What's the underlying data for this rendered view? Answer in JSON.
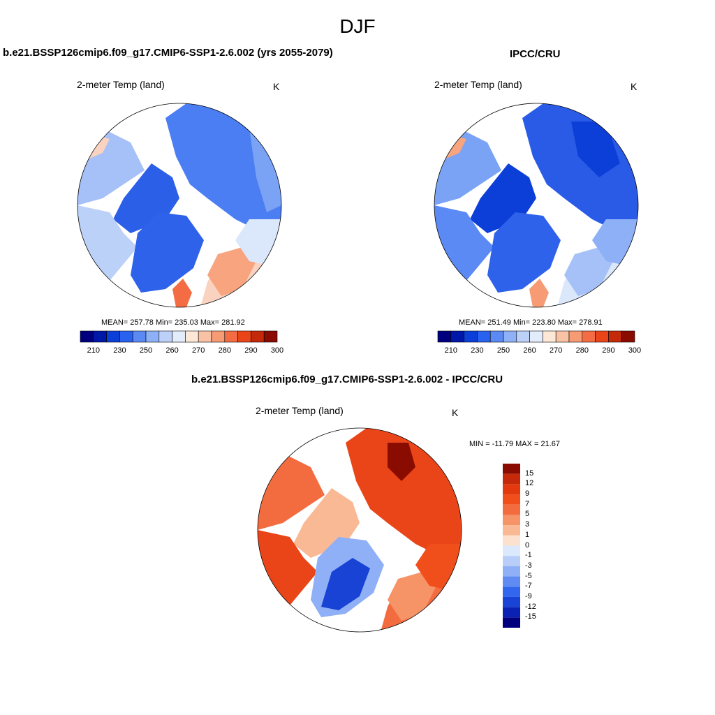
{
  "page": {
    "season": "DJF"
  },
  "panels": {
    "model": {
      "title": "b.e21.BSSP126cmip6.f09_g17.CMIP6-SSP1-2.6.002 (yrs 2055-2079)",
      "left_label": "2-meter Temp (land)",
      "right_label": "K",
      "stats": "MEAN= 257.78  Min= 235.03  Max= 281.92"
    },
    "obs": {
      "title": "IPCC/CRU",
      "left_label": "2-meter Temp (land)",
      "right_label": "K",
      "stats": "MEAN= 251.49  Min= 223.80  Max= 278.91"
    },
    "diff": {
      "title": "b.e21.BSSP126cmip6.f09_g17.CMIP6-SSP1-2.6.002 - IPCC/CRU",
      "left_label": "2-meter Temp (land)",
      "right_label": "K",
      "stats": "MIN = -11.79 MAX =  21.67"
    }
  },
  "colorbars": {
    "abs": {
      "colors": [
        "#00007f",
        "#0018a8",
        "#0c3fd8",
        "#2a62f0",
        "#5b8af5",
        "#8eb0f7",
        "#bdd0f8",
        "#e3ecfb",
        "#fde7d7",
        "#f9c2a5",
        "#f79b75",
        "#f46c43",
        "#ea4519",
        "#c42a09",
        "#8a0b00"
      ],
      "labels": [
        "210",
        "230",
        "250",
        "260",
        "270",
        "280",
        "290",
        "300"
      ]
    },
    "diff": {
      "colors": [
        "#8a0b00",
        "#c42a09",
        "#e23a0e",
        "#f04e1b",
        "#f36c3f",
        "#f69468",
        "#f9b995",
        "#fde1cf",
        "#dce8fb",
        "#b8cef9",
        "#8fb0f6",
        "#5f8bf3",
        "#3366ee",
        "#1843d4",
        "#0a22b3",
        "#00007f"
      ],
      "labels": [
        "15",
        "12",
        "9",
        "7",
        "5",
        "3",
        "1",
        "0",
        "-1",
        "-3",
        "-5",
        "-7",
        "-9",
        "-12",
        "-15"
      ]
    }
  },
  "chart_data": [
    {
      "type": "heatmap",
      "title": "b.e21.BSSP126cmip6.f09_g17.CMIP6-SSP1-2.6.002 (yrs 2055-2079)",
      "variable": "2-meter Temp (land)",
      "units": "K",
      "projection": "north polar stereographic",
      "mean": 257.78,
      "min": 235.03,
      "max": 281.92,
      "contour_levels": [
        210,
        220,
        230,
        240,
        250,
        255,
        260,
        265,
        270,
        275,
        280,
        285,
        290,
        295,
        300
      ]
    },
    {
      "type": "heatmap",
      "title": "IPCC/CRU",
      "variable": "2-meter Temp (land)",
      "units": "K",
      "projection": "north polar stereographic",
      "mean": 251.49,
      "min": 223.8,
      "max": 278.91,
      "contour_levels": [
        210,
        220,
        230,
        240,
        250,
        255,
        260,
        265,
        270,
        275,
        280,
        285,
        290,
        295,
        300
      ]
    },
    {
      "type": "heatmap",
      "title": "b.e21.BSSP126cmip6.f09_g17.CMIP6-SSP1-2.6.002 - IPCC/CRU",
      "variable": "2-meter Temp (land)",
      "units": "K",
      "projection": "north polar stereographic",
      "min": -11.79,
      "max": 21.67,
      "contour_levels": [
        -15,
        -12,
        -9,
        -7,
        -5,
        -3,
        -1,
        0,
        1,
        3,
        5,
        7,
        9,
        12,
        15
      ]
    }
  ]
}
